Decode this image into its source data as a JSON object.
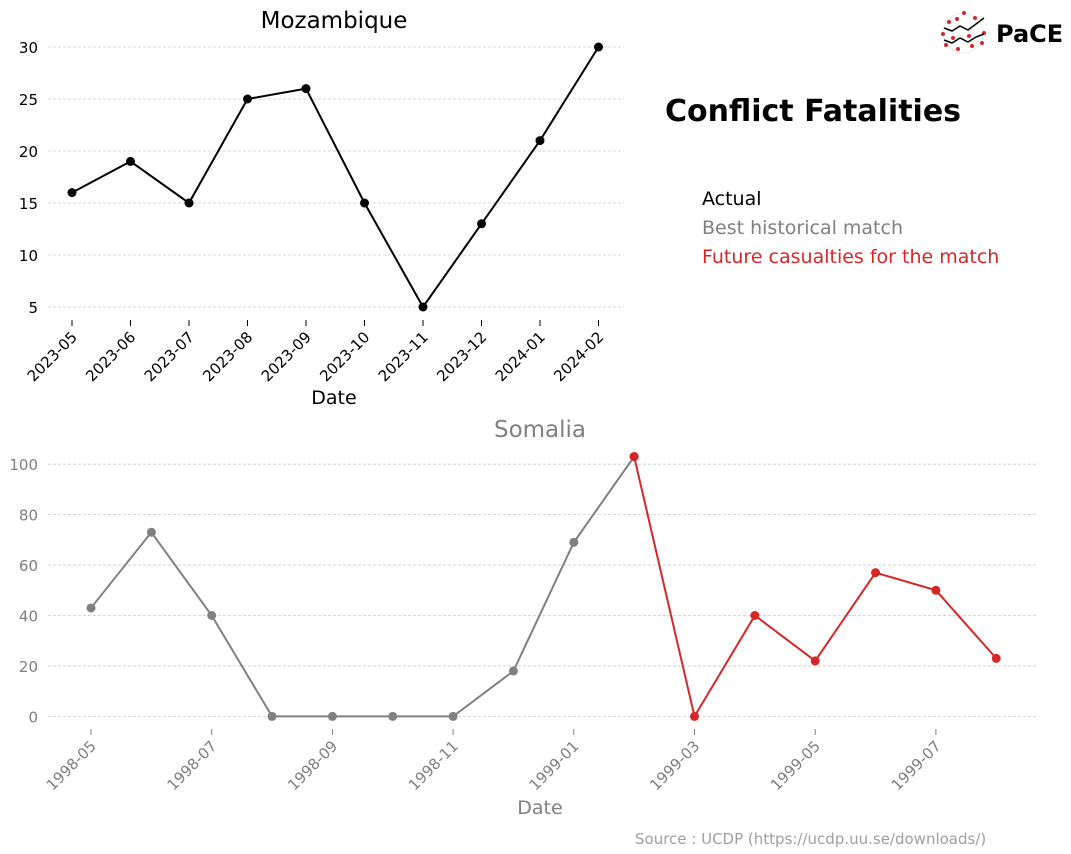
{
  "title": "Conflict Fatalities",
  "logo_text": "PaCE",
  "legend": [
    {
      "label": "Actual",
      "color": "#000000"
    },
    {
      "label": "Best historical match",
      "color": "#808080"
    },
    {
      "label": "Future casualties for the match",
      "color": "#d62728"
    }
  ],
  "source": "Source : UCDP (https://ucdp.uu.se/downloads/)",
  "chart_data": [
    {
      "type": "line",
      "title": "Mozambique",
      "xlabel": "Date",
      "ylabel": "",
      "x": [
        "2023-05",
        "2023-06",
        "2023-07",
        "2023-08",
        "2023-09",
        "2023-10",
        "2023-11",
        "2023-12",
        "2024-01",
        "2024-02"
      ],
      "series": [
        {
          "values": [
            16,
            19,
            15,
            25,
            26,
            15,
            5,
            13,
            21,
            30
          ],
          "color": "#000000"
        }
      ],
      "yticks": [
        5,
        10,
        15,
        20,
        25,
        30
      ],
      "ylim": [
        3.75,
        31.25
      ],
      "grid": "horizontal dashed"
    },
    {
      "type": "line",
      "title": "Somalia",
      "xlabel": "Date",
      "ylabel": "",
      "x": [
        "1998-05",
        "1998-06",
        "1998-07",
        "1998-08",
        "1998-09",
        "1998-10",
        "1998-11",
        "1998-12",
        "1999-01",
        "1999-02",
        "1999-03",
        "1999-04",
        "1999-05",
        "1999-06",
        "1999-07",
        "1999-08"
      ],
      "xticks": [
        "1998-05",
        "1998-07",
        "1998-09",
        "1998-11",
        "1999-01",
        "1999-03",
        "1999-05",
        "1999-07"
      ],
      "series": [
        {
          "values": [
            43,
            73,
            40,
            0,
            0,
            0,
            0,
            18,
            69,
            103,
            null,
            null,
            null,
            null,
            null,
            null
          ],
          "color": "#808080"
        },
        {
          "values": [
            null,
            null,
            null,
            null,
            null,
            null,
            null,
            null,
            null,
            103,
            0,
            40,
            22,
            57,
            50,
            23
          ],
          "color": "#d62728"
        }
      ],
      "yticks": [
        0,
        20,
        40,
        60,
        80,
        100
      ],
      "ylim": [
        -5,
        108
      ],
      "grid": "horizontal dashed"
    }
  ]
}
